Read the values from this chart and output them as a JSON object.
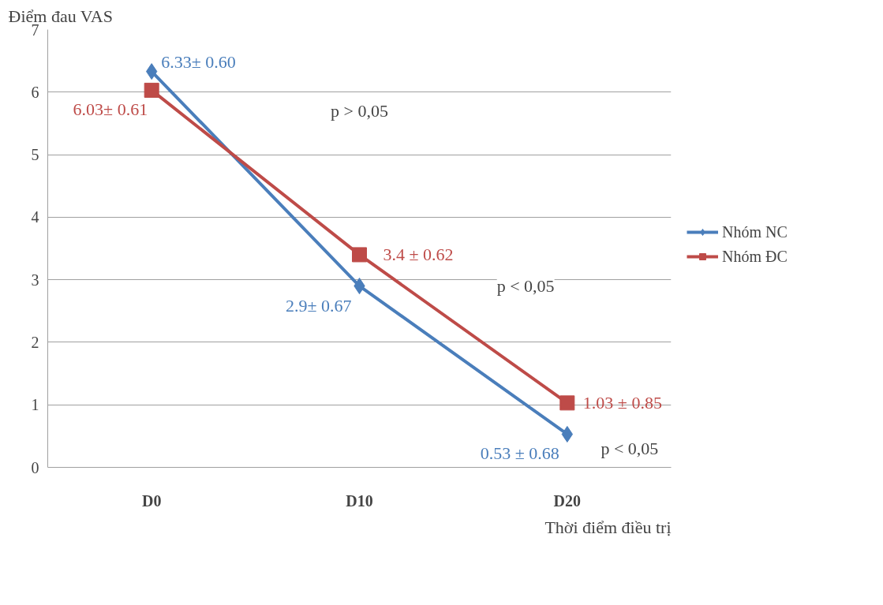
{
  "chart_data": {
    "type": "line",
    "ylabel": "Điểm đau VAS",
    "xlabel": "Thời điểm điều trị",
    "categories": [
      "D0",
      "D10",
      "D20"
    ],
    "series": [
      {
        "name": "Nhóm NC",
        "color": "#4a7ebb",
        "values": [
          6.33,
          2.9,
          0.53
        ],
        "value_labels": [
          "6.33± 0.60",
          "2.9± 0.67",
          "0.53 ± 0.68"
        ],
        "marker": "diamond"
      },
      {
        "name": "Nhóm ĐC",
        "color": "#be4b48",
        "values": [
          6.03,
          3.4,
          1.03
        ],
        "value_labels": [
          "6.03± 0.61",
          "3.4 ± 0.62",
          "1.03 ± 0.85"
        ],
        "marker": "square"
      }
    ],
    "ylim": [
      0,
      7
    ],
    "yticks": [
      0,
      1,
      2,
      3,
      4,
      5,
      6,
      7
    ],
    "grid": "y",
    "legend": "right",
    "line_style": "solid",
    "annotations": [
      "p > 0,05",
      "p < 0,05",
      "p < 0,05"
    ]
  }
}
